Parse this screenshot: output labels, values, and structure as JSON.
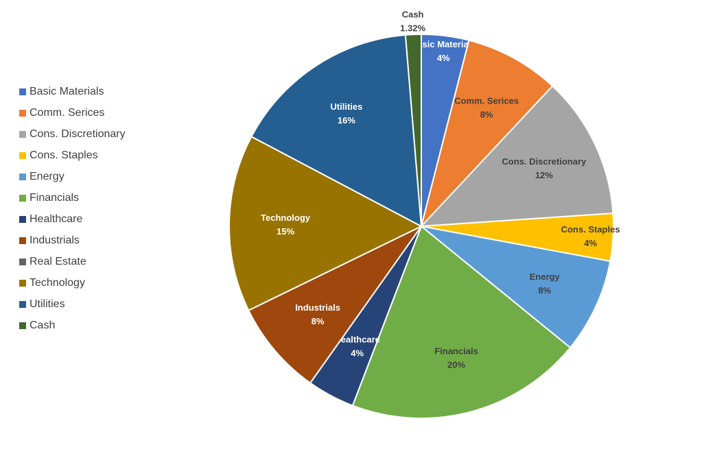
{
  "chart_data": {
    "type": "pie",
    "title": "",
    "legend_position": "left",
    "slices": [
      {
        "name": "Basic Materials",
        "value": 4,
        "label": "4%",
        "color": "#4472C4",
        "text_color": "#FFFFFF"
      },
      {
        "name": "Comm. Serices",
        "value": 8,
        "label": "8%",
        "color": "#ED7D31",
        "text_color": "#404040"
      },
      {
        "name": "Cons. Discretionary",
        "value": 12,
        "label": "12%",
        "color": "#A5A5A5",
        "text_color": "#404040"
      },
      {
        "name": "Cons. Staples",
        "value": 4,
        "label": "4%",
        "color": "#FFC000",
        "text_color": "#404040"
      },
      {
        "name": "Energy",
        "value": 8,
        "label": "8%",
        "color": "#5B9BD5",
        "text_color": "#404040"
      },
      {
        "name": "Financials",
        "value": 20,
        "label": "20%",
        "color": "#70AD47",
        "text_color": "#404040"
      },
      {
        "name": "Healthcare",
        "value": 4,
        "label": "4%",
        "color": "#264478",
        "text_color": "#FFFFFF"
      },
      {
        "name": "Industrials",
        "value": 8,
        "label": "8%",
        "color": "#9E480E",
        "text_color": "#FFFFFF"
      },
      {
        "name": "Real Estate",
        "value": 0,
        "label": "",
        "color": "#636363",
        "text_color": "#FFFFFF"
      },
      {
        "name": "Technology",
        "value": 15,
        "label": "15%",
        "color": "#997300",
        "text_color": "#FFFFFF"
      },
      {
        "name": "Utilities",
        "value": 16,
        "label": "16%",
        "color": "#255E91",
        "text_color": "#FFFFFF"
      },
      {
        "name": "Cash",
        "value": 1.32,
        "label": "1.32%",
        "color": "#43682B",
        "text_color": "#404040"
      }
    ]
  }
}
